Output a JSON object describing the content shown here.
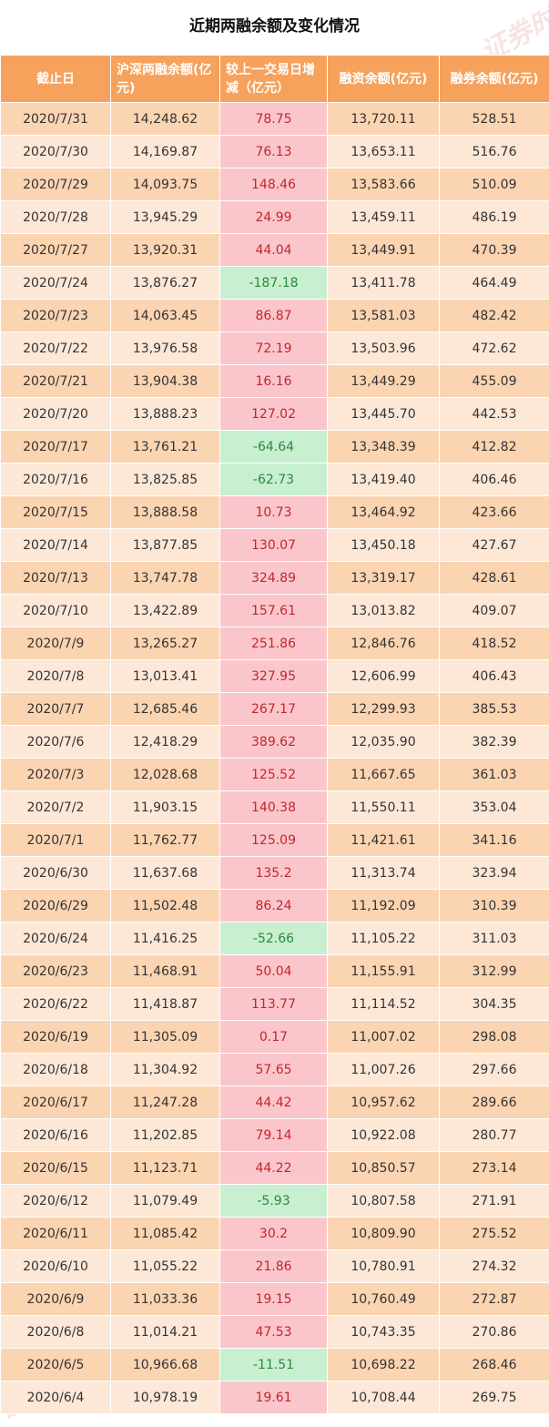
{
  "title": "近期两融余额及变化情况",
  "watermark_text": "证券时报网",
  "chart_data": {
    "type": "table",
    "title": "近期两融余额及变化情况",
    "columns": [
      "截止日",
      "沪深两融余额(亿元)",
      "较上一交易日增减（亿元）",
      "融资余额(亿元)",
      "融券余额(亿元)"
    ],
    "rows": [
      [
        "2020/7/31",
        "14,248.62",
        "78.75",
        "13,720.11",
        "528.51"
      ],
      [
        "2020/7/30",
        "14,169.87",
        "76.13",
        "13,653.11",
        "516.76"
      ],
      [
        "2020/7/29",
        "14,093.75",
        "148.46",
        "13,583.66",
        "510.09"
      ],
      [
        "2020/7/28",
        "13,945.29",
        "24.99",
        "13,459.11",
        "486.19"
      ],
      [
        "2020/7/27",
        "13,920.31",
        "44.04",
        "13,449.91",
        "470.39"
      ],
      [
        "2020/7/24",
        "13,876.27",
        "-187.18",
        "13,411.78",
        "464.49"
      ],
      [
        "2020/7/23",
        "14,063.45",
        "86.87",
        "13,581.03",
        "482.42"
      ],
      [
        "2020/7/22",
        "13,976.58",
        "72.19",
        "13,503.96",
        "472.62"
      ],
      [
        "2020/7/21",
        "13,904.38",
        "16.16",
        "13,449.29",
        "455.09"
      ],
      [
        "2020/7/20",
        "13,888.23",
        "127.02",
        "13,445.70",
        "442.53"
      ],
      [
        "2020/7/17",
        "13,761.21",
        "-64.64",
        "13,348.39",
        "412.82"
      ],
      [
        "2020/7/16",
        "13,825.85",
        "-62.73",
        "13,419.40",
        "406.46"
      ],
      [
        "2020/7/15",
        "13,888.58",
        "10.73",
        "13,464.92",
        "423.66"
      ],
      [
        "2020/7/14",
        "13,877.85",
        "130.07",
        "13,450.18",
        "427.67"
      ],
      [
        "2020/7/13",
        "13,747.78",
        "324.89",
        "13,319.17",
        "428.61"
      ],
      [
        "2020/7/10",
        "13,422.89",
        "157.61",
        "13,013.82",
        "409.07"
      ],
      [
        "2020/7/9",
        "13,265.27",
        "251.86",
        "12,846.76",
        "418.52"
      ],
      [
        "2020/7/8",
        "13,013.41",
        "327.95",
        "12,606.99",
        "406.43"
      ],
      [
        "2020/7/7",
        "12,685.46",
        "267.17",
        "12,299.93",
        "385.53"
      ],
      [
        "2020/7/6",
        "12,418.29",
        "389.62",
        "12,035.90",
        "382.39"
      ],
      [
        "2020/7/3",
        "12,028.68",
        "125.52",
        "11,667.65",
        "361.03"
      ],
      [
        "2020/7/2",
        "11,903.15",
        "140.38",
        "11,550.11",
        "353.04"
      ],
      [
        "2020/7/1",
        "11,762.77",
        "125.09",
        "11,421.61",
        "341.16"
      ],
      [
        "2020/6/30",
        "11,637.68",
        "135.2",
        "11,313.74",
        "323.94"
      ],
      [
        "2020/6/29",
        "11,502.48",
        "86.24",
        "11,192.09",
        "310.39"
      ],
      [
        "2020/6/24",
        "11,416.25",
        "-52.66",
        "11,105.22",
        "311.03"
      ],
      [
        "2020/6/23",
        "11,468.91",
        "50.04",
        "11,155.91",
        "312.99"
      ],
      [
        "2020/6/22",
        "11,418.87",
        "113.77",
        "11,114.52",
        "304.35"
      ],
      [
        "2020/6/19",
        "11,305.09",
        "0.17",
        "11,007.02",
        "298.08"
      ],
      [
        "2020/6/18",
        "11,304.92",
        "57.65",
        "11,007.26",
        "297.66"
      ],
      [
        "2020/6/17",
        "11,247.28",
        "44.42",
        "10,957.62",
        "289.66"
      ],
      [
        "2020/6/16",
        "11,202.85",
        "79.14",
        "10,922.08",
        "280.77"
      ],
      [
        "2020/6/15",
        "11,123.71",
        "44.22",
        "10,850.57",
        "273.14"
      ],
      [
        "2020/6/12",
        "11,079.49",
        "-5.93",
        "10,807.58",
        "271.91"
      ],
      [
        "2020/6/11",
        "11,085.42",
        "30.2",
        "10,809.90",
        "275.52"
      ],
      [
        "2020/6/10",
        "11,055.22",
        "21.86",
        "10,780.91",
        "274.32"
      ],
      [
        "2020/6/9",
        "11,033.36",
        "19.15",
        "10,760.49",
        "272.87"
      ],
      [
        "2020/6/8",
        "11,014.21",
        "47.53",
        "10,743.35",
        "270.86"
      ],
      [
        "2020/6/5",
        "10,966.68",
        "-11.51",
        "10,698.22",
        "268.46"
      ],
      [
        "2020/6/4",
        "10,978.19",
        "19.61",
        "10,708.44",
        "269.75"
      ]
    ]
  },
  "colors": {
    "header_bg": "#f6a15c",
    "row_odd_bg": "#fbd4b2",
    "row_even_bg": "#fde8d8",
    "increase_bg": "#fbc6cb",
    "increase_text": "#c0272d",
    "decrease_bg": "#c8efd0",
    "decrease_text": "#2a8a3e"
  }
}
